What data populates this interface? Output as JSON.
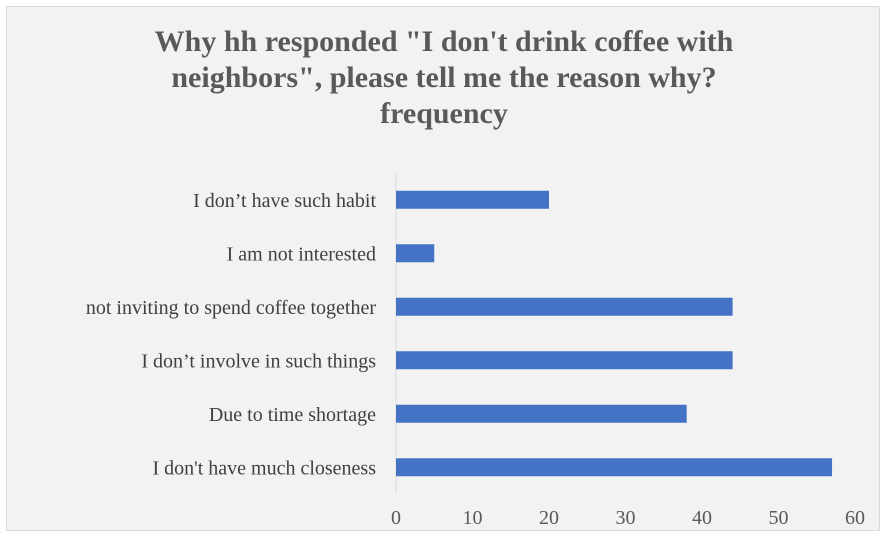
{
  "chart_data": {
    "type": "bar",
    "orientation": "horizontal",
    "title_lines": [
      "Why hh responded \"I don't drink coffee with",
      "neighbors\", please tell me the reason why?",
      "frequency"
    ],
    "categories": [
      "I don’t have such habit",
      "I am not interested",
      "not inviting to spend coffee together",
      "I don’t involve in such things",
      "Due to time shortage",
      "I don't have much closeness"
    ],
    "values": [
      20,
      5,
      44,
      44,
      38,
      57
    ],
    "xlim": [
      0,
      60
    ],
    "x_ticks": [
      0,
      10,
      20,
      30,
      40,
      50,
      60
    ],
    "grid": false,
    "legend": "none",
    "bar_color": "#4472c4",
    "axis_color": "#d9d9d9",
    "background_color": "#f2f2f2"
  }
}
